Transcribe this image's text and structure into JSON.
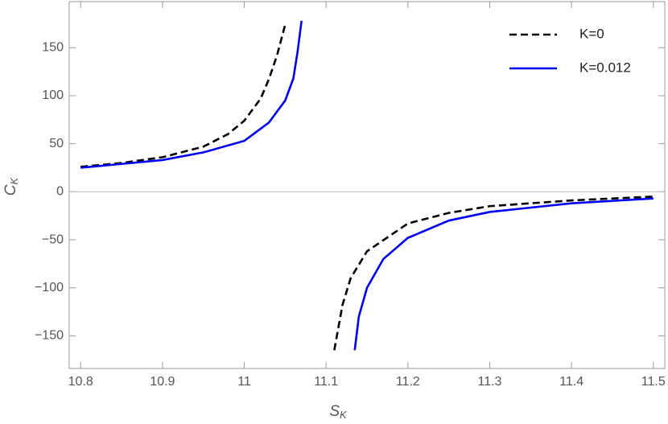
{
  "chart_data": {
    "type": "line",
    "x_label": {
      "main": "S",
      "sub": "K"
    },
    "y_label": {
      "main": "C",
      "sub": "K"
    },
    "xlim": [
      10.786,
      11.514
    ],
    "ylim": [
      -184,
      198
    ],
    "xticks": [
      10.8,
      10.9,
      11.0,
      11.1,
      11.2,
      11.3,
      11.4,
      11.5
    ],
    "yticks": [
      {
        "value": -150,
        "label": "−150"
      },
      {
        "value": -100,
        "label": "−100"
      },
      {
        "value": -50,
        "label": "−50"
      },
      0,
      50,
      100,
      150
    ],
    "zero_line": true,
    "legend": "top-right",
    "series": [
      {
        "name": "K=0",
        "color": "#000000",
        "dash": true,
        "x": [
          10.8,
          10.85,
          10.9,
          10.95,
          10.98,
          11.0,
          11.02,
          11.03,
          11.04,
          11.05,
          11.08,
          11.11,
          11.12,
          11.13,
          11.15,
          11.2,
          11.25,
          11.3,
          11.4,
          11.5
        ],
        "values": [
          26,
          30,
          36,
          47,
          60,
          74,
          97,
          117,
          142,
          174,
          null,
          -165,
          -118,
          -90,
          -62,
          -33,
          -22,
          -15,
          -9,
          -5
        ]
      },
      {
        "name": "K=0.012",
        "color": "#0000ee",
        "dash": false,
        "x": [
          10.8,
          10.9,
          10.95,
          11.0,
          11.03,
          11.05,
          11.06,
          11.065,
          11.07,
          11.1,
          11.135,
          11.14,
          11.15,
          11.17,
          11.2,
          11.25,
          11.3,
          11.4,
          11.5
        ],
        "values": [
          25,
          33,
          41,
          53,
          72,
          95,
          118,
          145,
          178,
          null,
          -165,
          -130,
          -100,
          -70,
          -48,
          -30,
          -21,
          -12,
          -7
        ]
      }
    ]
  }
}
